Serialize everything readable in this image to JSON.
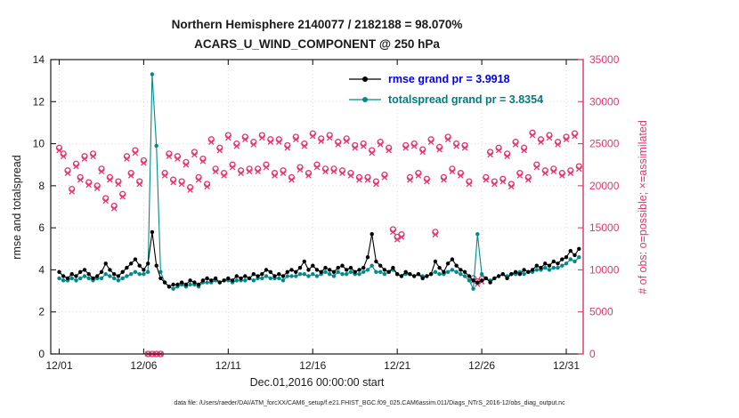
{
  "header": {
    "title_line1": "Northern Hemisphere 2140077 / 2182188 = 98.070%",
    "title_line2": "ACARS_U_WIND_COMPONENT @ 250 hPa"
  },
  "axes": {
    "x_label": "Dec.01,2016 00:00:00 start",
    "left_label": "rmse and totalspread",
    "right_label": "# of obs: o=possible; ×=assimilated"
  },
  "footer": {
    "text": "data file: /Users/raeder/DAI/ATM_forcXX/CAM6_setup/f.e21.FHIST_BGC.f09_025.CAM6assim.011/Diags_NTrS_2016-12/obs_diag_output.nc"
  },
  "legend": {
    "items": [
      {
        "label": "rmse grand pr = 3.9918",
        "color": "#0000ee",
        "line_color": "#000000"
      },
      {
        "label": "totalspread grand pr = 3.8354",
        "color": "#007d7d",
        "line_color": "#008b8b"
      }
    ]
  },
  "chart_data": {
    "type": "line",
    "title": "Northern Hemisphere 2140077 / 2182188 = 98.070%",
    "subtitle": "ACARS_U_WIND_COMPONENT @ 250 hPa",
    "xlabel": "Dec.01,2016 00:00:00 start",
    "grid": true,
    "legend_position": "top-center-inside",
    "x_start": 1,
    "x_step": 0.25,
    "x_range": [
      0.5,
      32
    ],
    "x_ticks": {
      "values": [
        1,
        6,
        11,
        16,
        21,
        26,
        31
      ],
      "labels": [
        "12/01",
        "12/06",
        "12/11",
        "12/16",
        "12/21",
        "12/26",
        "12/31"
      ]
    },
    "left_axis": {
      "label": "rmse and totalspread",
      "range": [
        0,
        14
      ],
      "ticks": [
        0,
        2,
        4,
        6,
        8,
        10,
        12,
        14
      ],
      "color": "#1a1a1a"
    },
    "right_axis": {
      "label": "# of obs: o=possible; ×=assimilated",
      "range": [
        0,
        35000
      ],
      "ticks": [
        0,
        5000,
        10000,
        15000,
        20000,
        25000,
        30000,
        35000
      ],
      "tick_labels": [
        "0",
        "5000",
        "10000",
        "15000",
        "20000",
        "25000",
        "30000",
        "35000"
      ],
      "color": "#e8336e"
    },
    "series": [
      {
        "name": "possible",
        "axis": "right",
        "type": "scatter",
        "marker": "circle",
        "color": "#e8336e",
        "values": [
          24500,
          23800,
          21800,
          19600,
          22600,
          21000,
          23500,
          20400,
          23800,
          20000,
          22000,
          18500,
          21000,
          17600,
          20500,
          19000,
          23500,
          21500,
          24200,
          20500,
          23000,
          0,
          0,
          0,
          0,
          21500,
          23800,
          20700,
          23500,
          20500,
          22800,
          19800,
          24000,
          21000,
          23200,
          20200,
          25500,
          22000,
          24500,
          21500,
          26000,
          22500,
          25000,
          21800,
          25800,
          22000,
          25200,
          22000,
          26000,
          22500,
          25500,
          21500,
          25500,
          21800,
          24800,
          21000,
          25800,
          22200,
          25000,
          21500,
          26200,
          22500,
          25600,
          22000,
          26000,
          22000,
          25200,
          21800,
          25600,
          21500,
          24800,
          21000,
          25000,
          21000,
          24200,
          20500,
          25200,
          21300,
          24500,
          14800,
          13900,
          14200,
          24800,
          21000,
          25000,
          21500,
          24300,
          20800,
          25500,
          14500,
          24600,
          21000,
          25800,
          22000,
          25000,
          21500,
          24800,
          20500,
          9000,
          8600,
          8900,
          21000,
          24000,
          20500,
          24500,
          20800,
          23800,
          20200,
          25200,
          21500,
          24500,
          21000,
          26300,
          22500,
          25500,
          21800,
          26000,
          22000,
          25200,
          21500,
          25800,
          21800,
          26200,
          22300
        ]
      },
      {
        "name": "assimilated",
        "axis": "right",
        "type": "scatter",
        "marker": "x",
        "color": "#e8336e",
        "values": [
          24200,
          23500,
          21500,
          19300,
          22300,
          20700,
          23200,
          20100,
          23500,
          19700,
          21700,
          18200,
          20700,
          17300,
          20200,
          18700,
          23200,
          21200,
          23900,
          20200,
          22700,
          0,
          0,
          0,
          0,
          21200,
          23500,
          20400,
          23200,
          20200,
          22500,
          19500,
          23700,
          20700,
          22900,
          19900,
          25200,
          21700,
          24200,
          21200,
          25700,
          22200,
          24700,
          21500,
          25500,
          21700,
          24900,
          21700,
          25700,
          22200,
          25200,
          21200,
          25200,
          21500,
          24500,
          20700,
          25500,
          21900,
          24700,
          21200,
          25900,
          22200,
          25300,
          21700,
          25700,
          21700,
          24900,
          21500,
          25300,
          21200,
          24500,
          20700,
          24700,
          20700,
          23900,
          20200,
          24900,
          21000,
          24200,
          14500,
          13600,
          13900,
          24500,
          20700,
          24700,
          21200,
          24000,
          20500,
          25200,
          14200,
          24300,
          20700,
          25500,
          21700,
          24700,
          21200,
          24500,
          20200,
          8700,
          8300,
          8600,
          20700,
          23700,
          20200,
          24200,
          20500,
          23500,
          19900,
          24900,
          21200,
          24200,
          20700,
          26000,
          22200,
          25200,
          21500,
          25700,
          21700,
          24900,
          21200,
          25500,
          21500,
          25900,
          22000
        ]
      },
      {
        "name": "totalspread",
        "axis": "left",
        "type": "line",
        "marker": "dot",
        "color": "#008b8b",
        "grand_pr": 3.8354,
        "values": [
          3.6,
          3.5,
          3.5,
          3.6,
          3.5,
          3.6,
          3.7,
          3.6,
          3.5,
          3.6,
          3.6,
          3.8,
          3.7,
          3.6,
          3.5,
          3.6,
          3.7,
          3.8,
          3.9,
          3.8,
          3.8,
          3.9,
          13.3,
          9.9,
          3.9,
          3.4,
          3.2,
          3.1,
          3.2,
          3.3,
          3.2,
          3.3,
          3.3,
          3.2,
          3.4,
          3.4,
          3.4,
          3.5,
          3.4,
          3.5,
          3.5,
          3.4,
          3.5,
          3.5,
          3.5,
          3.6,
          3.5,
          3.6,
          3.6,
          3.7,
          3.6,
          3.6,
          3.6,
          3.5,
          3.7,
          3.7,
          3.7,
          3.8,
          3.8,
          3.7,
          3.8,
          3.7,
          3.8,
          3.9,
          3.8,
          3.7,
          3.9,
          3.8,
          3.8,
          3.9,
          3.8,
          3.8,
          3.9,
          4.0,
          4.2,
          3.9,
          3.9,
          3.8,
          3.9,
          4.0,
          3.8,
          3.7,
          3.8,
          3.8,
          3.7,
          3.8,
          3.7,
          3.7,
          3.8,
          3.9,
          3.8,
          3.8,
          3.9,
          4.0,
          3.9,
          3.8,
          3.7,
          3.5,
          3.1,
          5.7,
          3.8,
          3.6,
          3.5,
          3.6,
          3.7,
          3.8,
          3.7,
          3.8,
          3.8,
          3.9,
          3.8,
          3.9,
          3.9,
          4.0,
          4.0,
          4.1,
          4.0,
          4.1,
          4.1,
          4.2,
          4.3,
          4.5,
          4.4,
          4.6
        ]
      },
      {
        "name": "rmse",
        "axis": "left",
        "type": "line",
        "marker": "dot",
        "color": "#000000",
        "grand_pr": 3.9918,
        "values": [
          3.9,
          3.7,
          3.6,
          3.8,
          3.7,
          3.9,
          4.0,
          3.8,
          3.6,
          3.7,
          3.9,
          4.3,
          4.0,
          3.8,
          3.7,
          3.9,
          4.1,
          4.3,
          4.5,
          4.2,
          4.0,
          4.3,
          5.8,
          4.2,
          3.6,
          3.4,
          3.2,
          3.3,
          3.3,
          3.4,
          3.3,
          3.5,
          3.4,
          3.3,
          3.5,
          3.6,
          3.5,
          3.6,
          3.4,
          3.5,
          3.6,
          3.5,
          3.7,
          3.6,
          3.7,
          3.6,
          3.8,
          3.7,
          3.8,
          4.0,
          3.9,
          3.7,
          3.8,
          3.7,
          3.9,
          4.0,
          3.9,
          4.1,
          4.4,
          4.0,
          4.2,
          4.0,
          3.9,
          4.1,
          4.0,
          3.9,
          4.1,
          4.2,
          4.0,
          4.1,
          3.9,
          4.0,
          4.1,
          4.6,
          5.7,
          4.4,
          4.2,
          4.0,
          3.9,
          4.1,
          3.8,
          3.7,
          3.9,
          3.8,
          3.7,
          3.8,
          3.6,
          3.7,
          3.8,
          4.4,
          4.1,
          3.9,
          4.3,
          4.5,
          4.2,
          4.0,
          3.9,
          3.7,
          3.5,
          3.4,
          3.5,
          3.6,
          3.4,
          3.6,
          3.7,
          3.8,
          3.6,
          3.8,
          3.9,
          3.8,
          4.0,
          3.9,
          4.0,
          4.2,
          4.1,
          4.3,
          4.2,
          4.4,
          4.3,
          4.5,
          4.6,
          4.9,
          4.7,
          5.0
        ]
      }
    ]
  }
}
